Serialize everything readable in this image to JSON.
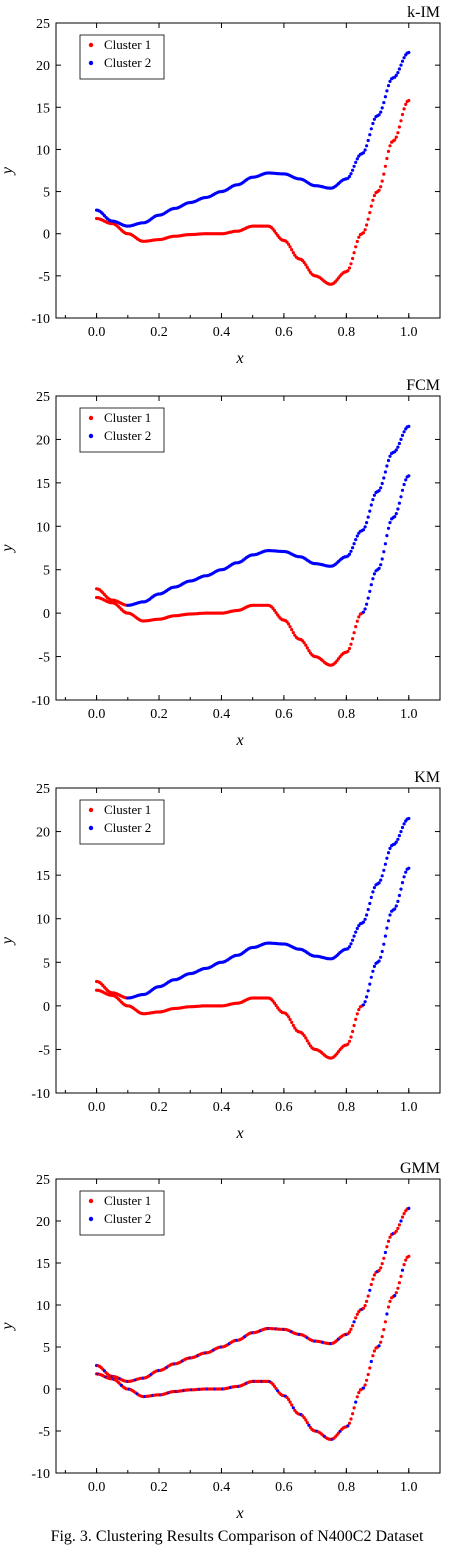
{
  "figure": {
    "caption": "Fig. 3.   Clustering Results Comparison of N400C2 Dataset"
  },
  "colors": {
    "cluster1": "#ff0000",
    "cluster2": "#0000ff"
  },
  "chart_data": [
    {
      "type": "scatter",
      "title": "k-IM",
      "xlabel": "x",
      "ylabel": "y",
      "xlim": [
        -0.13,
        1.1
      ],
      "ylim": [
        -10,
        25
      ],
      "x_ticks": [
        "0.0",
        "0.2",
        "0.4",
        "0.6",
        "0.8",
        "1.0"
      ],
      "y_ticks": [
        "-10",
        "-5",
        "0",
        "5",
        "10",
        "15",
        "20",
        "25"
      ],
      "legend": {
        "position": "top-left",
        "entries": [
          "Cluster 1",
          "Cluster 2"
        ]
      },
      "grid": false,
      "series": [
        {
          "name": "Cluster 1",
          "color": "#ff0000",
          "curve": "lower",
          "x": [
            0.0,
            0.05,
            0.1,
            0.15,
            0.2,
            0.25,
            0.3,
            0.35,
            0.4,
            0.45,
            0.5,
            0.55,
            0.6,
            0.65,
            0.7,
            0.75,
            0.8,
            0.85,
            0.9,
            0.95,
            1.0
          ],
          "y": [
            1.8,
            1.2,
            0.0,
            -0.9,
            -0.7,
            -0.3,
            -0.1,
            0.0,
            0.0,
            0.3,
            0.9,
            0.9,
            -0.8,
            -3.0,
            -5.0,
            -6.0,
            -4.5,
            0.0,
            5.0,
            11.0,
            15.8
          ]
        },
        {
          "name": "Cluster 2",
          "color": "#0000ff",
          "curve": "upper",
          "x": [
            0.0,
            0.05,
            0.1,
            0.15,
            0.2,
            0.25,
            0.3,
            0.35,
            0.4,
            0.45,
            0.5,
            0.55,
            0.6,
            0.65,
            0.7,
            0.75,
            0.8,
            0.85,
            0.9,
            0.95,
            1.0
          ],
          "y": [
            2.8,
            1.5,
            0.9,
            1.3,
            2.2,
            3.0,
            3.7,
            4.3,
            5.0,
            5.8,
            6.7,
            7.2,
            7.1,
            6.5,
            5.7,
            5.4,
            6.5,
            9.5,
            14.0,
            18.5,
            21.5
          ]
        }
      ]
    },
    {
      "type": "scatter",
      "title": "FCM",
      "xlabel": "x",
      "ylabel": "y",
      "xlim": [
        -0.13,
        1.1
      ],
      "ylim": [
        -10,
        25
      ],
      "x_ticks": [
        "0.0",
        "0.2",
        "0.4",
        "0.6",
        "0.8",
        "1.0"
      ],
      "y_ticks": [
        "-10",
        "-5",
        "0",
        "5",
        "10",
        "15",
        "20",
        "25"
      ],
      "legend": {
        "position": "top-left",
        "entries": [
          "Cluster 1",
          "Cluster 2"
        ]
      },
      "grid": false,
      "series": [
        {
          "name": "Cluster 1",
          "color": "#ff0000",
          "description": "lower curve up to x≈0.85 plus start of upper curve x<0.1",
          "x": [
            0.0,
            0.05,
            0.1,
            0.15,
            0.2,
            0.25,
            0.3,
            0.35,
            0.4,
            0.45,
            0.5,
            0.55,
            0.6,
            0.65,
            0.7,
            0.75,
            0.8,
            0.85
          ],
          "y": [
            1.8,
            1.2,
            0.0,
            -0.9,
            -0.7,
            -0.3,
            -0.1,
            0.0,
            0.0,
            0.3,
            0.9,
            0.9,
            -0.8,
            -3.0,
            -5.0,
            -6.0,
            -4.5,
            0.0
          ]
        },
        {
          "name": "Cluster 2",
          "color": "#0000ff",
          "description": "upper curve from x≈0.1 plus tail of lower curve x>0.85",
          "x": [
            0.1,
            0.15,
            0.2,
            0.25,
            0.3,
            0.35,
            0.4,
            0.45,
            0.5,
            0.55,
            0.6,
            0.65,
            0.7,
            0.75,
            0.8,
            0.85,
            0.9,
            0.95,
            1.0
          ],
          "y": [
            0.9,
            1.3,
            2.2,
            3.0,
            3.7,
            4.3,
            5.0,
            5.8,
            6.7,
            7.2,
            7.1,
            6.5,
            5.7,
            5.4,
            6.5,
            9.5,
            14.0,
            18.5,
            21.5
          ]
        }
      ]
    },
    {
      "type": "scatter",
      "title": "KM",
      "xlabel": "x",
      "ylabel": "y",
      "xlim": [
        -0.13,
        1.1
      ],
      "ylim": [
        -10,
        25
      ],
      "x_ticks": [
        "0.0",
        "0.2",
        "0.4",
        "0.6",
        "0.8",
        "1.0"
      ],
      "y_ticks": [
        "-10",
        "-5",
        "0",
        "5",
        "10",
        "15",
        "20",
        "25"
      ],
      "legend": {
        "position": "top-left",
        "entries": [
          "Cluster 1",
          "Cluster 2"
        ]
      },
      "grid": false,
      "series": [
        {
          "name": "Cluster 1",
          "color": "#ff0000",
          "description": "lower curve up to x≈0.85 plus start of upper curve x<0.1",
          "x": [
            0.0,
            0.05,
            0.1,
            0.15,
            0.2,
            0.25,
            0.3,
            0.35,
            0.4,
            0.45,
            0.5,
            0.55,
            0.6,
            0.65,
            0.7,
            0.75,
            0.8,
            0.85
          ],
          "y": [
            1.8,
            1.2,
            0.0,
            -0.9,
            -0.7,
            -0.3,
            -0.1,
            0.0,
            0.0,
            0.3,
            0.9,
            0.9,
            -0.8,
            -3.0,
            -5.0,
            -6.0,
            -4.5,
            0.0
          ]
        },
        {
          "name": "Cluster 2",
          "color": "#0000ff",
          "description": "upper curve from x≈0.1 plus tail of lower curve x>0.85",
          "x": [
            0.1,
            0.15,
            0.2,
            0.25,
            0.3,
            0.35,
            0.4,
            0.45,
            0.5,
            0.55,
            0.6,
            0.65,
            0.7,
            0.75,
            0.8,
            0.85,
            0.9,
            0.95,
            1.0
          ],
          "y": [
            0.9,
            1.3,
            2.2,
            3.0,
            3.7,
            4.3,
            5.0,
            5.8,
            6.7,
            7.2,
            7.1,
            6.5,
            5.7,
            5.4,
            6.5,
            9.5,
            14.0,
            18.5,
            21.5
          ]
        }
      ]
    },
    {
      "type": "scatter",
      "title": "GMM",
      "xlabel": "x",
      "ylabel": "y",
      "xlim": [
        -0.13,
        1.1
      ],
      "ylim": [
        -10,
        25
      ],
      "x_ticks": [
        "0.0",
        "0.2",
        "0.4",
        "0.6",
        "0.8",
        "1.0"
      ],
      "y_ticks": [
        "-10",
        "-5",
        "0",
        "5",
        "10",
        "15",
        "20",
        "25"
      ],
      "legend": {
        "position": "top-left",
        "entries": [
          "Cluster 1",
          "Cluster 2"
        ]
      },
      "grid": false,
      "series": [
        {
          "name": "Cluster 1",
          "color": "#ff0000",
          "description": "points from both curves, intermixed",
          "x": [
            0.0,
            0.05,
            0.1,
            0.15,
            0.2,
            0.25,
            0.3,
            0.35,
            0.4,
            0.45,
            0.5,
            0.55,
            0.6,
            0.65,
            0.7,
            0.75,
            0.8,
            0.85,
            0.9,
            0.95,
            1.0
          ],
          "y": [
            1.8,
            1.2,
            0.0,
            -0.9,
            -0.7,
            -0.3,
            -0.1,
            0.0,
            0.0,
            0.3,
            0.9,
            0.9,
            -0.8,
            -3.0,
            -5.0,
            -6.0,
            -4.5,
            0.0,
            5.0,
            11.0,
            15.8
          ]
        },
        {
          "name": "Cluster 2",
          "color": "#0000ff",
          "description": "points from both curves, intermixed",
          "x": [
            0.0,
            0.05,
            0.1,
            0.15,
            0.2,
            0.25,
            0.3,
            0.35,
            0.4,
            0.45,
            0.5,
            0.55,
            0.6,
            0.65,
            0.7,
            0.75,
            0.8,
            0.85,
            0.9,
            0.95,
            1.0
          ],
          "y": [
            2.8,
            1.5,
            0.9,
            1.3,
            2.2,
            3.0,
            3.7,
            4.3,
            5.0,
            5.8,
            6.7,
            7.2,
            7.1,
            6.5,
            5.7,
            5.4,
            6.5,
            9.5,
            14.0,
            18.5,
            21.5
          ]
        }
      ]
    }
  ]
}
